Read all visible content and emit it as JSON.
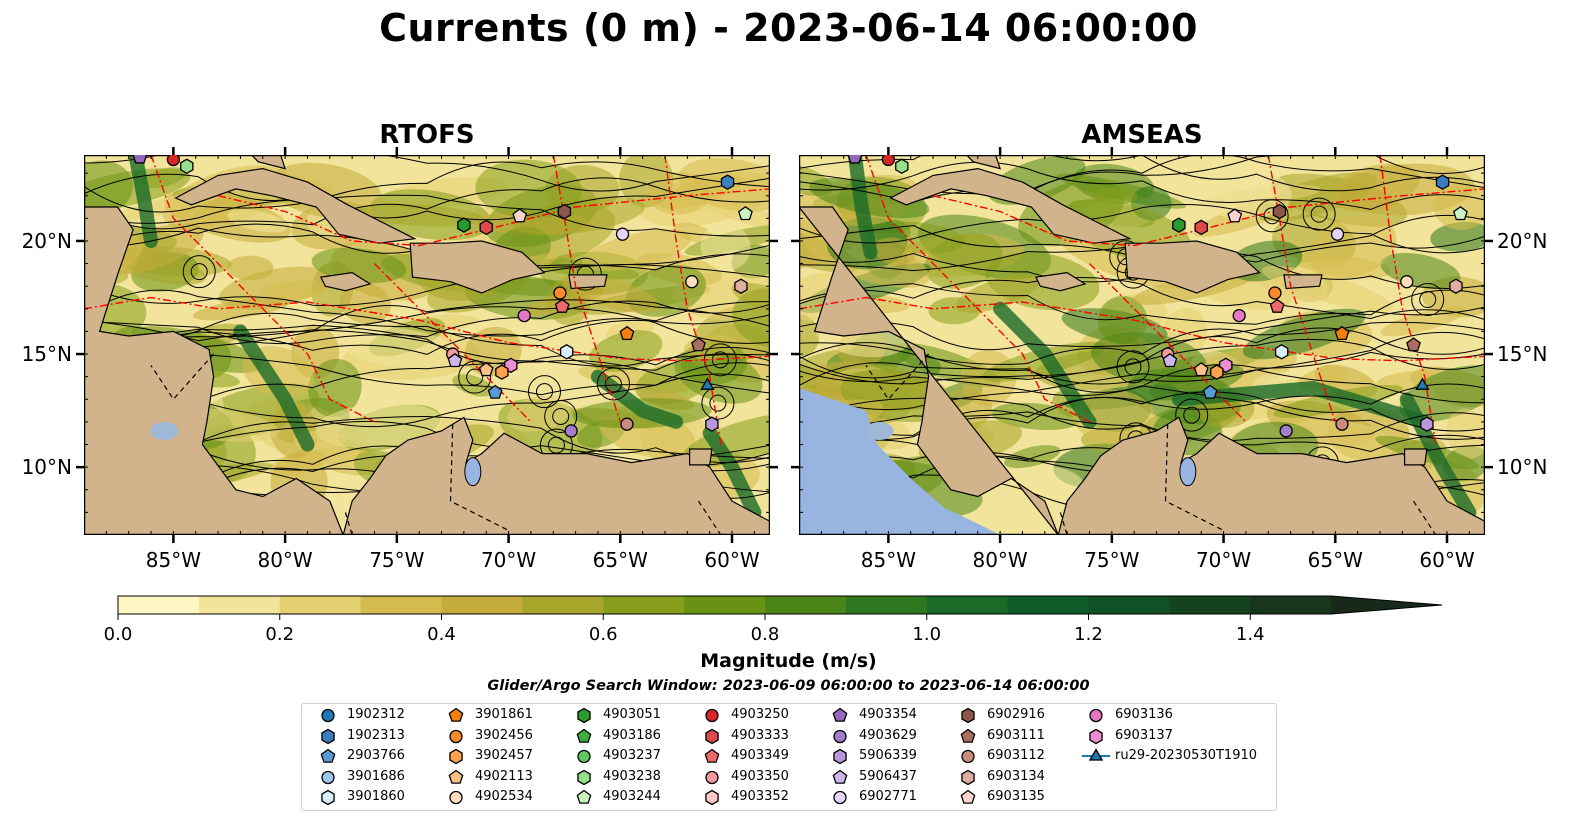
{
  "title": "Currents (0 m) - 2023-06-14 06:00:00",
  "panels": [
    {
      "title": "RTOFS"
    },
    {
      "title": "AMSEAS"
    }
  ],
  "colors": {
    "land": "#d2b48c",
    "pacific": "#97b5e0",
    "eez": "#ff0000",
    "colormap": [
      "#fdf8c3",
      "#f2e49a",
      "#e5d072",
      "#d5bb4f",
      "#c5ab3a",
      "#a7a52a",
      "#869e1c",
      "#679214",
      "#4a8518",
      "#2e771e",
      "#1a6a28",
      "#0f5a29",
      "#125027",
      "#15431f",
      "#17361a",
      "#18291b",
      "#17241b"
    ]
  },
  "axes": {
    "x_ticks": [
      {
        "value": -85,
        "label": "85°W"
      },
      {
        "value": -80,
        "label": "80°W"
      },
      {
        "value": -75,
        "label": "75°W"
      },
      {
        "value": -70,
        "label": "70°W"
      },
      {
        "value": -65,
        "label": "65°W"
      },
      {
        "value": -60,
        "label": "60°W"
      }
    ],
    "y_ticks": [
      {
        "value": 10,
        "label": "10°N"
      },
      {
        "value": 15,
        "label": "15°N"
      },
      {
        "value": 20,
        "label": "20°N"
      }
    ],
    "xlim": [
      -89,
      -58.3
    ],
    "ylim": [
      7,
      23.8
    ]
  },
  "colorbar": {
    "label": "Magnitude (m/s)",
    "min": 0.0,
    "max": 1.6,
    "step": 0.1,
    "extend": "max",
    "ticks": [
      {
        "value": 0.0,
        "label": "0.0"
      },
      {
        "value": 0.2,
        "label": "0.2"
      },
      {
        "value": 0.4,
        "label": "0.4"
      },
      {
        "value": 0.6,
        "label": "0.6"
      },
      {
        "value": 0.8,
        "label": "0.8"
      },
      {
        "value": 1.0,
        "label": "1.0"
      },
      {
        "value": 1.2,
        "label": "1.2"
      },
      {
        "value": 1.4,
        "label": "1.4"
      }
    ]
  },
  "search_window": "Glider/Argo Search Window: 2023-06-09 06:00:00 to 2023-06-14 06:00:00",
  "legend": [
    {
      "name": "1902312",
      "marker": "circle",
      "color": "#1f77b4"
    },
    {
      "name": "1902313",
      "marker": "hexagon",
      "color": "#3a7fc0"
    },
    {
      "name": "2903766",
      "marker": "pentagon",
      "color": "#5a9ad4"
    },
    {
      "name": "3901686",
      "marker": "circle",
      "color": "#9cc6ec"
    },
    {
      "name": "3901860",
      "marker": "hexagon",
      "color": "#d9ecfb"
    },
    {
      "name": "3901861",
      "marker": "pentagon",
      "color": "#f07f0e"
    },
    {
      "name": "3902456",
      "marker": "circle",
      "color": "#fd8a2b"
    },
    {
      "name": "3902457",
      "marker": "hexagon",
      "color": "#fda251"
    },
    {
      "name": "4902113",
      "marker": "pentagon",
      "color": "#fdc186"
    },
    {
      "name": "4902534",
      "marker": "circle",
      "color": "#feddbc"
    },
    {
      "name": "4903051",
      "marker": "hexagon",
      "color": "#2a9a2a"
    },
    {
      "name": "4903186",
      "marker": "pentagon",
      "color": "#3faf3f"
    },
    {
      "name": "4903237",
      "marker": "circle",
      "color": "#5fc75f"
    },
    {
      "name": "4903238",
      "marker": "hexagon",
      "color": "#98df8a"
    },
    {
      "name": "4903244",
      "marker": "pentagon",
      "color": "#cbf3c1"
    },
    {
      "name": "4903250",
      "marker": "circle",
      "color": "#d62728"
    },
    {
      "name": "4903333",
      "marker": "hexagon",
      "color": "#e04a4a"
    },
    {
      "name": "4903349",
      "marker": "pentagon",
      "color": "#ec6a6a"
    },
    {
      "name": "4903350",
      "marker": "circle",
      "color": "#f59a9a"
    },
    {
      "name": "4903352",
      "marker": "hexagon",
      "color": "#fcc9c9"
    },
    {
      "name": "4903354",
      "marker": "pentagon",
      "color": "#9467bd"
    },
    {
      "name": "4903629",
      "marker": "circle",
      "color": "#a27fcc"
    },
    {
      "name": "5906339",
      "marker": "hexagon",
      "color": "#b897dc"
    },
    {
      "name": "5906437",
      "marker": "pentagon",
      "color": "#ceb6ea"
    },
    {
      "name": "6902771",
      "marker": "circle",
      "color": "#e4d4f6"
    },
    {
      "name": "6902916",
      "marker": "hexagon",
      "color": "#8c564b"
    },
    {
      "name": "6903111",
      "marker": "pentagon",
      "color": "#a86f60"
    },
    {
      "name": "6903112",
      "marker": "circle",
      "color": "#c88c7e"
    },
    {
      "name": "6903134",
      "marker": "hexagon",
      "color": "#e0ada3"
    },
    {
      "name": "6903135",
      "marker": "pentagon",
      "color": "#f6d3cc"
    },
    {
      "name": "6903136",
      "marker": "circle",
      "color": "#e377c2"
    },
    {
      "name": "6903137",
      "marker": "hexagon",
      "color": "#ee8fd2"
    },
    {
      "name": "ru29-20230530T1910",
      "marker": "triangle-line",
      "color": "#1f77b4"
    }
  ],
  "chart_data": [
    {
      "type": "map",
      "panel": "RTOFS",
      "xlabel": "",
      "ylabel": "",
      "xlim": [
        -89,
        -58.3
      ],
      "ylim": [
        7,
        23.8
      ],
      "markers": [
        {
          "name": "4903354",
          "lon": -86.5,
          "lat": 23.7
        },
        {
          "name": "4903250",
          "lon": -85.0,
          "lat": 23.6
        },
        {
          "name": "4903238",
          "lon": -84.4,
          "lat": 23.3
        },
        {
          "name": "1902313",
          "lon": -60.2,
          "lat": 22.6
        },
        {
          "name": "6902916",
          "lon": -67.5,
          "lat": 21.3
        },
        {
          "name": "4903244",
          "lon": -59.4,
          "lat": 21.2
        },
        {
          "name": "6903135",
          "lon": -69.5,
          "lat": 21.1
        },
        {
          "name": "4903051",
          "lon": -72.0,
          "lat": 20.7
        },
        {
          "name": "4903333",
          "lon": -71.0,
          "lat": 20.6
        },
        {
          "name": "6902771",
          "lon": -64.9,
          "lat": 20.3
        },
        {
          "name": "4902534",
          "lon": -61.8,
          "lat": 18.2
        },
        {
          "name": "6903134",
          "lon": -59.6,
          "lat": 18.0
        },
        {
          "name": "3902456",
          "lon": -67.7,
          "lat": 17.7
        },
        {
          "name": "4903349",
          "lon": -67.6,
          "lat": 17.1
        },
        {
          "name": "6903136",
          "lon": -69.3,
          "lat": 16.7
        },
        {
          "name": "3901861",
          "lon": -64.7,
          "lat": 15.9
        },
        {
          "name": "6903111",
          "lon": -61.5,
          "lat": 15.4
        },
        {
          "name": "3901860",
          "lon": -67.4,
          "lat": 15.1
        },
        {
          "name": "4903350",
          "lon": -72.5,
          "lat": 15.0
        },
        {
          "name": "5906437",
          "lon": -72.4,
          "lat": 14.7
        },
        {
          "name": "6903137",
          "lon": -69.9,
          "lat": 14.5
        },
        {
          "name": "4902113",
          "lon": -71.0,
          "lat": 14.3
        },
        {
          "name": "3902457",
          "lon": -70.3,
          "lat": 14.2
        },
        {
          "name": "2903766",
          "lon": -70.6,
          "lat": 13.3
        },
        {
          "name": "ru29-20230530T1910",
          "lon": -61.1,
          "lat": 13.6
        },
        {
          "name": "4903629",
          "lon": -67.2,
          "lat": 11.6
        },
        {
          "name": "6903112",
          "lon": -64.7,
          "lat": 11.9
        },
        {
          "name": "5906339",
          "lon": -60.9,
          "lat": 11.9
        }
      ]
    },
    {
      "type": "map",
      "panel": "AMSEAS",
      "xlabel": "",
      "ylabel": "",
      "xlim": [
        -89,
        -58.3
      ],
      "ylim": [
        7,
        23.8
      ],
      "markers": [
        {
          "name": "4903354",
          "lon": -86.5,
          "lat": 23.7
        },
        {
          "name": "4903250",
          "lon": -85.0,
          "lat": 23.6
        },
        {
          "name": "4903238",
          "lon": -84.4,
          "lat": 23.3
        },
        {
          "name": "1902313",
          "lon": -60.2,
          "lat": 22.6
        },
        {
          "name": "6902916",
          "lon": -67.5,
          "lat": 21.3
        },
        {
          "name": "4903244",
          "lon": -59.4,
          "lat": 21.2
        },
        {
          "name": "6903135",
          "lon": -69.5,
          "lat": 21.1
        },
        {
          "name": "4903051",
          "lon": -72.0,
          "lat": 20.7
        },
        {
          "name": "4903333",
          "lon": -71.0,
          "lat": 20.6
        },
        {
          "name": "6902771",
          "lon": -64.9,
          "lat": 20.3
        },
        {
          "name": "4902534",
          "lon": -61.8,
          "lat": 18.2
        },
        {
          "name": "6903134",
          "lon": -59.6,
          "lat": 18.0
        },
        {
          "name": "3902456",
          "lon": -67.7,
          "lat": 17.7
        },
        {
          "name": "4903349",
          "lon": -67.6,
          "lat": 17.1
        },
        {
          "name": "6903136",
          "lon": -69.3,
          "lat": 16.7
        },
        {
          "name": "3901861",
          "lon": -64.7,
          "lat": 15.9
        },
        {
          "name": "6903111",
          "lon": -61.5,
          "lat": 15.4
        },
        {
          "name": "3901860",
          "lon": -67.4,
          "lat": 15.1
        },
        {
          "name": "4903350",
          "lon": -72.5,
          "lat": 15.0
        },
        {
          "name": "5906437",
          "lon": -72.4,
          "lat": 14.7
        },
        {
          "name": "6903137",
          "lon": -69.9,
          "lat": 14.5
        },
        {
          "name": "4902113",
          "lon": -71.0,
          "lat": 14.3
        },
        {
          "name": "3902457",
          "lon": -70.3,
          "lat": 14.2
        },
        {
          "name": "2903766",
          "lon": -70.6,
          "lat": 13.3
        },
        {
          "name": "ru29-20230530T1910",
          "lon": -61.1,
          "lat": 13.6
        },
        {
          "name": "4903629",
          "lon": -67.2,
          "lat": 11.6
        },
        {
          "name": "6903112",
          "lon": -64.7,
          "lat": 11.9
        },
        {
          "name": "5906339",
          "lon": -60.9,
          "lat": 11.9
        }
      ]
    }
  ]
}
